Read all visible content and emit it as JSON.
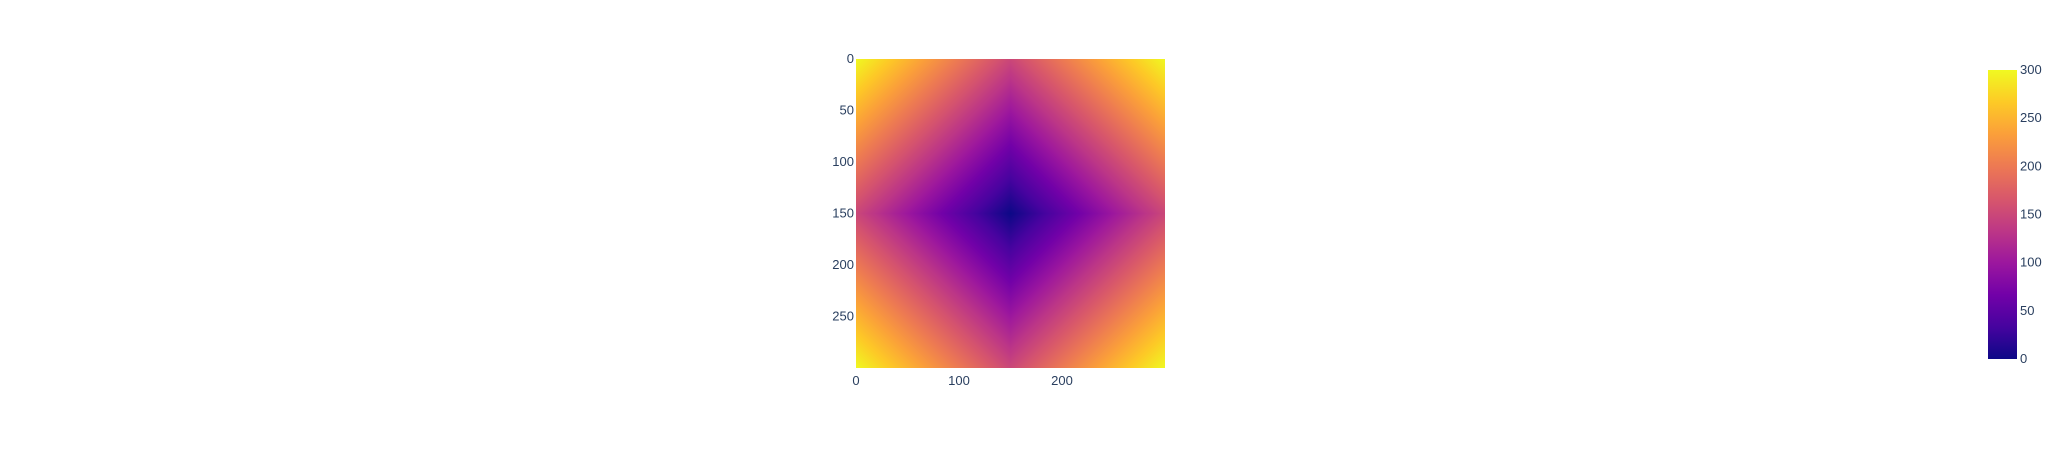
{
  "chart_data": {
    "type": "heatmap",
    "title": "",
    "xlabel": "",
    "ylabel": "",
    "function": "z = |x - 150| + |y - 150|",
    "x_range": [
      0,
      300
    ],
    "y_range": [
      0,
      300
    ],
    "y_reversed": true,
    "x_ticks": [
      "0",
      "100",
      "200"
    ],
    "y_ticks": [
      "0",
      "50",
      "100",
      "150",
      "200",
      "250"
    ],
    "z_range": [
      0,
      300
    ],
    "z_samples": [
      {
        "x": 0,
        "y": 0,
        "z": 300
      },
      {
        "x": 150,
        "y": 0,
        "z": 150
      },
      {
        "x": 300,
        "y": 0,
        "z": 300
      },
      {
        "x": 0,
        "y": 150,
        "z": 150
      },
      {
        "x": 150,
        "y": 150,
        "z": 0
      },
      {
        "x": 300,
        "y": 150,
        "z": 150
      },
      {
        "x": 0,
        "y": 300,
        "z": 300
      },
      {
        "x": 150,
        "y": 300,
        "z": 150
      },
      {
        "x": 300,
        "y": 300,
        "z": 300
      }
    ],
    "colorscale": "plasma",
    "colorscale_stops": [
      "#0d0887",
      "#46039f",
      "#7201a8",
      "#9c179e",
      "#bd3786",
      "#d8576b",
      "#ed7953",
      "#fb9f3a",
      "#fdca26",
      "#f0f921"
    ],
    "colorbar_ticks": [
      "0",
      "50",
      "100",
      "150",
      "200",
      "250",
      "300"
    ],
    "grid": false,
    "legend": "none"
  }
}
